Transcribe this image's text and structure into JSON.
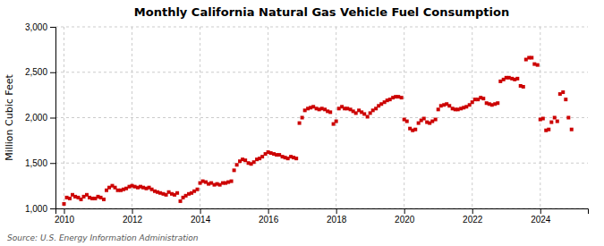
{
  "chart_data": {
    "type": "scatter",
    "title": "Monthly California Natural Gas Vehicle Fuel Consumption",
    "ylabel": "Million Cubic Feet",
    "source": "Source: U.S. Energy Information Administration",
    "color": "#cc0000",
    "marker": "square",
    "grid": true,
    "xlim": [
      2009.75,
      2025.4
    ],
    "xticks": [
      2010,
      2012,
      2014,
      2016,
      2018,
      2020,
      2022,
      2024
    ],
    "ylim": [
      1000,
      3000
    ],
    "yticks": [
      {
        "value": 1000,
        "label": "1,000"
      },
      {
        "value": 1500,
        "label": "1,500"
      },
      {
        "value": 2000,
        "label": "2,000"
      },
      {
        "value": 2500,
        "label": "2,500"
      },
      {
        "value": 3000,
        "label": "3,000"
      }
    ],
    "x": [
      2010.0,
      2010.08,
      2010.17,
      2010.25,
      2010.33,
      2010.42,
      2010.5,
      2010.58,
      2010.67,
      2010.75,
      2010.83,
      2010.92,
      2011.0,
      2011.08,
      2011.17,
      2011.25,
      2011.33,
      2011.42,
      2011.5,
      2011.58,
      2011.67,
      2011.75,
      2011.83,
      2011.92,
      2012.0,
      2012.08,
      2012.17,
      2012.25,
      2012.33,
      2012.42,
      2012.5,
      2012.58,
      2012.67,
      2012.75,
      2012.83,
      2012.92,
      2013.0,
      2013.08,
      2013.17,
      2013.25,
      2013.33,
      2013.42,
      2013.5,
      2013.58,
      2013.67,
      2013.75,
      2013.83,
      2013.92,
      2014.0,
      2014.08,
      2014.17,
      2014.25,
      2014.33,
      2014.42,
      2014.5,
      2014.58,
      2014.67,
      2014.75,
      2014.83,
      2014.92,
      2015.0,
      2015.08,
      2015.17,
      2015.25,
      2015.33,
      2015.42,
      2015.5,
      2015.58,
      2015.67,
      2015.75,
      2015.83,
      2015.92,
      2016.0,
      2016.08,
      2016.17,
      2016.25,
      2016.33,
      2016.42,
      2016.5,
      2016.58,
      2016.67,
      2016.75,
      2016.83,
      2016.92,
      2017.0,
      2017.08,
      2017.17,
      2017.25,
      2017.33,
      2017.42,
      2017.5,
      2017.58,
      2017.67,
      2017.75,
      2017.83,
      2017.92,
      2018.0,
      2018.08,
      2018.17,
      2018.25,
      2018.33,
      2018.42,
      2018.5,
      2018.58,
      2018.67,
      2018.75,
      2018.83,
      2018.92,
      2019.0,
      2019.08,
      2019.17,
      2019.25,
      2019.33,
      2019.42,
      2019.5,
      2019.58,
      2019.67,
      2019.75,
      2019.83,
      2019.92,
      2020.0,
      2020.08,
      2020.17,
      2020.25,
      2020.33,
      2020.42,
      2020.5,
      2020.58,
      2020.67,
      2020.75,
      2020.83,
      2020.92,
      2021.0,
      2021.08,
      2021.17,
      2021.25,
      2021.33,
      2021.42,
      2021.5,
      2021.58,
      2021.67,
      2021.75,
      2021.83,
      2021.92,
      2022.0,
      2022.08,
      2022.17,
      2022.25,
      2022.33,
      2022.42,
      2022.5,
      2022.58,
      2022.67,
      2022.75,
      2022.83,
      2022.92,
      2023.0,
      2023.08,
      2023.17,
      2023.25,
      2023.33,
      2023.42,
      2023.5,
      2023.58,
      2023.67,
      2023.75,
      2023.83,
      2023.92,
      2024.0,
      2024.08,
      2024.17,
      2024.25,
      2024.33,
      2024.42,
      2024.5,
      2024.58,
      2024.67,
      2024.75,
      2024.83,
      2024.92
    ],
    "values": [
      1050,
      1120,
      1110,
      1150,
      1130,
      1120,
      1100,
      1130,
      1150,
      1120,
      1110,
      1110,
      1130,
      1120,
      1100,
      1200,
      1230,
      1250,
      1230,
      1200,
      1200,
      1210,
      1220,
      1240,
      1250,
      1240,
      1230,
      1240,
      1230,
      1220,
      1230,
      1210,
      1190,
      1180,
      1170,
      1160,
      1150,
      1180,
      1160,
      1150,
      1170,
      1080,
      1120,
      1140,
      1160,
      1170,
      1190,
      1210,
      1280,
      1300,
      1290,
      1270,
      1280,
      1260,
      1270,
      1260,
      1280,
      1280,
      1290,
      1300,
      1420,
      1480,
      1520,
      1540,
      1530,
      1500,
      1490,
      1510,
      1540,
      1550,
      1570,
      1600,
      1620,
      1610,
      1600,
      1590,
      1590,
      1570,
      1560,
      1550,
      1570,
      1560,
      1550,
      1940,
      2000,
      2080,
      2100,
      2110,
      2120,
      2100,
      2090,
      2100,
      2090,
      2070,
      2060,
      1930,
      1960,
      2100,
      2120,
      2100,
      2100,
      2090,
      2070,
      2050,
      2080,
      2060,
      2040,
      2010,
      2050,
      2080,
      2100,
      2130,
      2150,
      2170,
      2190,
      2200,
      2220,
      2230,
      2230,
      2220,
      1980,
      1960,
      1880,
      1860,
      1870,
      1940,
      1970,
      1990,
      1950,
      1940,
      1960,
      1980,
      2090,
      2130,
      2140,
      2150,
      2130,
      2100,
      2090,
      2090,
      2100,
      2110,
      2120,
      2140,
      2170,
      2200,
      2200,
      2220,
      2210,
      2160,
      2150,
      2140,
      2150,
      2160,
      2400,
      2420,
      2440,
      2440,
      2430,
      2420,
      2430,
      2350,
      2340,
      2640,
      2660,
      2660,
      2590,
      2580,
      1980,
      1990,
      1860,
      1870,
      1950,
      2000,
      1960,
      2260,
      2280,
      2200,
      2000,
      1870
    ]
  }
}
